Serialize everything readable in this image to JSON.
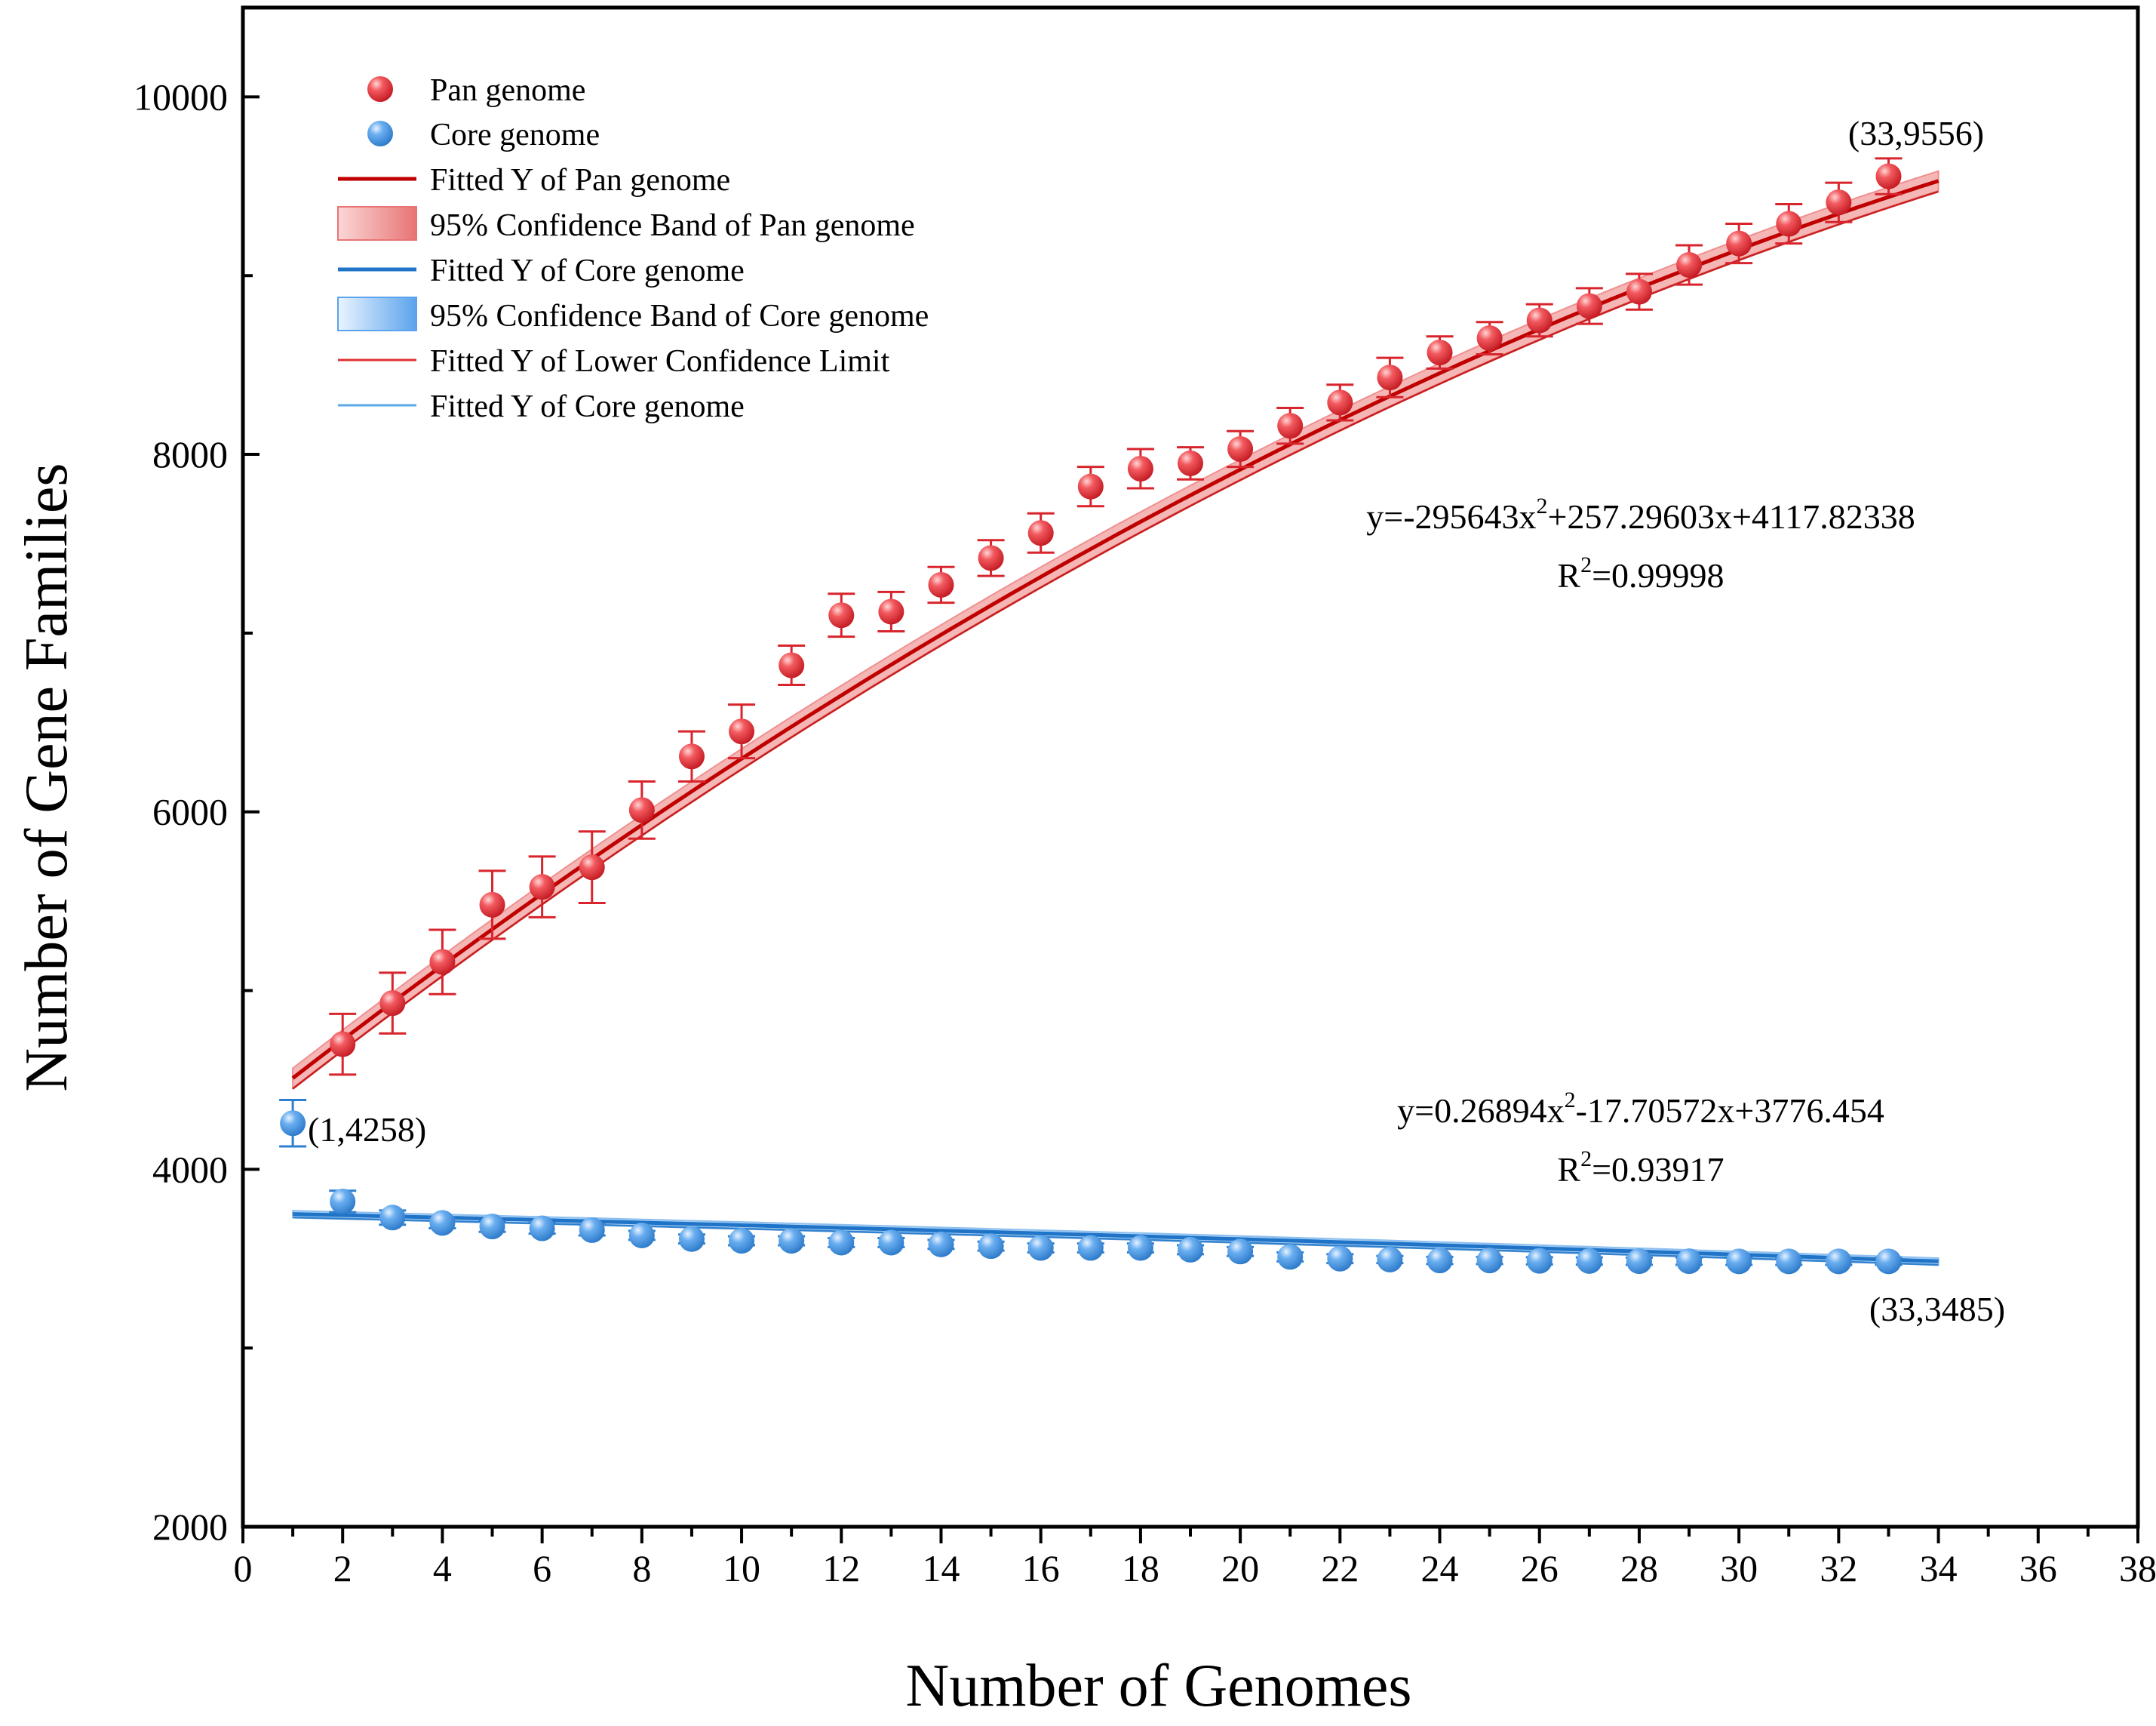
{
  "chart_data": {
    "type": "scatter",
    "title": "",
    "xlabel": "Number of Genomes",
    "ylabel": "Number of Gene Families",
    "xlim": [
      0,
      38
    ],
    "ylim": [
      2000,
      10500
    ],
    "x_ticks": [
      "0",
      "2",
      "4",
      "6",
      "8",
      "10",
      "12",
      "14",
      "16",
      "18",
      "20",
      "22",
      "24",
      "26",
      "28",
      "30",
      "32",
      "34",
      "36",
      "38"
    ],
    "y_ticks": [
      "2000",
      "4000",
      "6000",
      "8000",
      "10000"
    ],
    "grid": false,
    "legend_position": "top-left",
    "legend": [
      {
        "label": "Pan genome",
        "kind": "marker",
        "color": "#e8303a"
      },
      {
        "label": "Core genome",
        "kind": "marker",
        "color": "#3f8fd8"
      },
      {
        "label": "Fitted Y of Pan genome",
        "kind": "line",
        "color": "#c00000"
      },
      {
        "label": "95% Confidence Band of Pan genome",
        "kind": "band",
        "color": "#f08f8f"
      },
      {
        "label": "Fitted Y of Core genome",
        "kind": "line",
        "color": "#1f74c8"
      },
      {
        "label": "95% Confidence Band of Core genome",
        "kind": "band",
        "color": "#8cbff0"
      },
      {
        "label": "Fitted Y of Lower Confidence Limit",
        "kind": "thin-line",
        "color": "#e03030"
      },
      {
        "label": "Fitted Y of Core genome",
        "kind": "thin-line",
        "color": "#5aa8e8"
      }
    ],
    "series": [
      {
        "name": "Pan genome",
        "x": [
          2,
          3,
          4,
          5,
          6,
          7,
          8,
          9,
          10,
          11,
          12,
          13,
          14,
          15,
          16,
          17,
          18,
          19,
          20,
          21,
          22,
          23,
          24,
          25,
          26,
          27,
          28,
          29,
          30,
          31,
          32,
          33
        ],
        "values": [
          4700,
          4930,
          5160,
          5480,
          5580,
          5690,
          6010,
          6310,
          6450,
          6820,
          7100,
          7120,
          7270,
          7420,
          7560,
          7820,
          7920,
          7950,
          8030,
          8160,
          8290,
          8430,
          8570,
          8650,
          8750,
          8830,
          8910,
          9060,
          9180,
          9290,
          9410,
          9556
        ],
        "errors": [
          170,
          170,
          180,
          190,
          170,
          200,
          160,
          140,
          150,
          110,
          120,
          110,
          100,
          100,
          110,
          110,
          110,
          90,
          100,
          100,
          100,
          110,
          90,
          90,
          90,
          100,
          100,
          110,
          110,
          110,
          110,
          100
        ],
        "color": "#e8303a"
      },
      {
        "name": "Core genome",
        "x": [
          1,
          2,
          3,
          4,
          5,
          6,
          7,
          8,
          9,
          10,
          11,
          12,
          13,
          14,
          15,
          16,
          17,
          18,
          19,
          20,
          21,
          22,
          23,
          24,
          25,
          26,
          27,
          28,
          29,
          30,
          31,
          32,
          33
        ],
        "values": [
          4258,
          3820,
          3730,
          3700,
          3680,
          3670,
          3660,
          3630,
          3610,
          3600,
          3600,
          3590,
          3590,
          3580,
          3570,
          3560,
          3560,
          3560,
          3550,
          3540,
          3510,
          3500,
          3495,
          3490,
          3490,
          3488,
          3487,
          3486,
          3486,
          3485,
          3485,
          3485,
          3485
        ],
        "errors": [
          130,
          60,
          40,
          30,
          30,
          30,
          30,
          25,
          25,
          25,
          25,
          25,
          25,
          25,
          25,
          25,
          25,
          25,
          25,
          25,
          25,
          25,
          20,
          20,
          20,
          20,
          20,
          20,
          20,
          20,
          20,
          20,
          20
        ],
        "color": "#3f8fd8"
      }
    ],
    "fits": [
      {
        "name": "Fitted Y of Pan genome",
        "x_range": [
          1,
          34
        ],
        "start_value": 4510,
        "end_value": 9530,
        "curvature": -0.42,
        "band": 55,
        "lower_offset": -60,
        "color": "#c00000",
        "band_color": "#f08f8f"
      },
      {
        "name": "Fitted Y of Core genome",
        "x_range": [
          1,
          34
        ],
        "start_value": 3750,
        "end_value": 3485,
        "curvature": 0.18,
        "band": 18,
        "lower_offset": -20,
        "color": "#1f74c8",
        "band_color": "#8cbff0"
      }
    ],
    "annotations": [
      {
        "text": "(33,9556)",
        "x": 33,
        "y": 9556
      },
      {
        "text": "(1,4258)",
        "x": 1,
        "y": 4258
      },
      {
        "text": "(33,3485)",
        "x": 33,
        "y": 3485
      }
    ],
    "equations": {
      "pan": {
        "equation": "y=-295643x",
        "sup": "2",
        "rest": "+257.29603x+4117.82338",
        "r2_prefix": "R",
        "r2_sup": "2",
        "r2_value": "=0.99998"
      },
      "core": {
        "equation": "y=0.26894x",
        "sup": "2",
        "rest": "-17.70572x+3776.454",
        "r2_prefix": "R",
        "r2_sup": "2",
        "r2_value": "=0.93917"
      }
    }
  }
}
